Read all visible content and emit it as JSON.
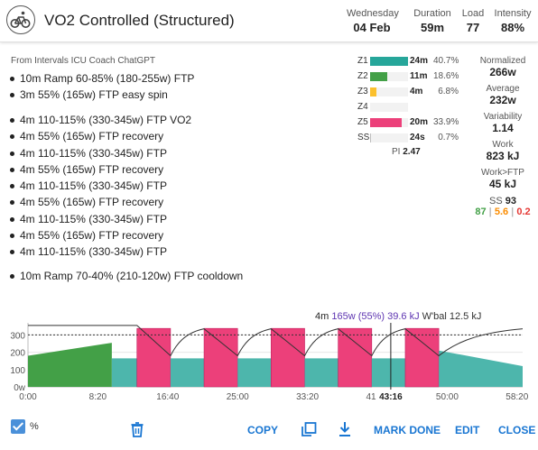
{
  "header": {
    "title": "VO2 Controlled (Structured)",
    "stats": [
      {
        "label": "Wednesday",
        "value": "04 Feb"
      },
      {
        "label": "Duration",
        "value": "59m"
      },
      {
        "label": "Load",
        "value": "77"
      },
      {
        "label": "Intensity",
        "value": "88%"
      }
    ]
  },
  "description": {
    "source": "From Intervals ICU Coach ChatGPT",
    "group1": [
      "10m Ramp 60-85% (180-255w) FTP",
      "3m 55% (165w) FTP easy spin"
    ],
    "group2": [
      "4m 110-115% (330-345w) FTP VO2",
      "4m 55% (165w) FTP recovery",
      "4m 110-115% (330-345w) FTP",
      "4m 55% (165w) FTP recovery",
      "4m 110-115% (330-345w) FTP",
      "4m 55% (165w) FTP recovery",
      "4m 110-115% (330-345w) FTP",
      "4m 55% (165w) FTP recovery",
      "4m 110-115% (330-345w) FTP"
    ],
    "group3": [
      "10m Ramp 70-40% (210-120w) FTP cooldown"
    ]
  },
  "zones": [
    {
      "name": "Z1",
      "time": "24m",
      "pct": "40.7%",
      "fraction": 0.407,
      "color": "#26a69a"
    },
    {
      "name": "Z2",
      "time": "11m",
      "pct": "18.6%",
      "fraction": 0.186,
      "color": "#43a047"
    },
    {
      "name": "Z3",
      "time": "4m",
      "pct": "6.8%",
      "fraction": 0.068,
      "color": "#fbc02d"
    },
    {
      "name": "Z4",
      "time": "",
      "pct": "",
      "fraction": 0,
      "color": "#fb8c00"
    },
    {
      "name": "Z5",
      "time": "20m",
      "pct": "33.9%",
      "fraction": 0.339,
      "color": "#ec407a"
    },
    {
      "name": "SS",
      "time": "24s",
      "pct": "0.7%",
      "fraction": 0.007,
      "color": "#bdbdbd"
    }
  ],
  "pi": {
    "label": "PI",
    "value": "2.47"
  },
  "metrics": [
    {
      "label": "Normalized",
      "value": "266w"
    },
    {
      "label": "Average",
      "value": "232w"
    },
    {
      "label": "Variability",
      "value": "1.14"
    },
    {
      "label": "Work",
      "value": "823 kJ"
    },
    {
      "label": "Work>FTP",
      "value": "45 kJ"
    }
  ],
  "ss": {
    "label": "SS",
    "value": "93",
    "p1": "87",
    "p2": "5.6",
    "p3": "0.2"
  },
  "graph_info": {
    "duration": "4m",
    "power": "165w (55%)",
    "work": "39.6 kJ",
    "wbal": "W'bal 12.5 kJ"
  },
  "chart_data": {
    "type": "area",
    "xlabel": "",
    "ylabel": "",
    "x_ticks": [
      "0:00",
      "8:20",
      "16:40",
      "25:00",
      "33:20",
      "41:40",
      "50:00",
      "58:20"
    ],
    "y_ticks": [
      "0w",
      "100",
      "200",
      "300"
    ],
    "ylim": [
      0,
      370
    ],
    "xlim_minutes": [
      0,
      59
    ],
    "ftp_w": 300,
    "cursor_label": "43:16",
    "cursor_minute": 43.27,
    "segments": [
      {
        "start": 0,
        "end": 10,
        "from_w": 180,
        "to_w": 255,
        "zone": "Z2"
      },
      {
        "start": 10,
        "end": 13,
        "from_w": 165,
        "to_w": 165,
        "zone": "Z1"
      },
      {
        "start": 13,
        "end": 17,
        "from_w": 338,
        "to_w": 338,
        "zone": "Z5"
      },
      {
        "start": 17,
        "end": 21,
        "from_w": 165,
        "to_w": 165,
        "zone": "Z1"
      },
      {
        "start": 21,
        "end": 25,
        "from_w": 338,
        "to_w": 338,
        "zone": "Z5"
      },
      {
        "start": 25,
        "end": 29,
        "from_w": 165,
        "to_w": 165,
        "zone": "Z1"
      },
      {
        "start": 29,
        "end": 33,
        "from_w": 338,
        "to_w": 338,
        "zone": "Z5"
      },
      {
        "start": 33,
        "end": 37,
        "from_w": 165,
        "to_w": 165,
        "zone": "Z1"
      },
      {
        "start": 37,
        "end": 41,
        "from_w": 338,
        "to_w": 338,
        "zone": "Z5"
      },
      {
        "start": 41,
        "end": 45,
        "from_w": 165,
        "to_w": 165,
        "zone": "Z1"
      },
      {
        "start": 45,
        "end": 49,
        "from_w": 338,
        "to_w": 338,
        "zone": "Z5"
      },
      {
        "start": 49,
        "end": 59,
        "from_w": 210,
        "to_w": 120,
        "zone": "Z1"
      }
    ],
    "zone_colors": {
      "Z1": "#4db6ac",
      "Z2": "#43a047",
      "Z5": "#ec407a"
    }
  },
  "footer": {
    "percent_label": "%",
    "copy": "COPY",
    "mark_done": "MARK DONE",
    "edit": "EDIT",
    "close": "CLOSE"
  }
}
